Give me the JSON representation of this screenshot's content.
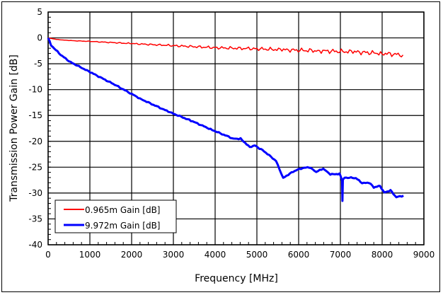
{
  "chart_data": {
    "type": "line",
    "title": "",
    "xlabel": "Frequency [MHz]",
    "ylabel": "Transmission Power Gain  [dB]",
    "xlim": [
      0,
      9000
    ],
    "ylim": [
      -40,
      5
    ],
    "xticks": [
      0,
      1000,
      2000,
      3000,
      4000,
      5000,
      6000,
      7000,
      8000,
      9000
    ],
    "yticks": [
      5,
      0,
      -5,
      -10,
      -15,
      -20,
      -25,
      -30,
      -35,
      -40
    ],
    "grid": true,
    "legend_position": "bottom-left",
    "series": [
      {
        "name": "0.965m Gain [dB]",
        "color": "#ff0000",
        "x": [
          0,
          200,
          500,
          1050,
          2000,
          3000,
          4000,
          5000,
          5600,
          6500,
          7300,
          8000,
          8500
        ],
        "y": [
          0,
          -0.3,
          -0.5,
          -0.7,
          -1.1,
          -1.5,
          -1.9,
          -2.1,
          -2.3,
          -2.5,
          -2.7,
          -3.0,
          -3.3
        ]
      },
      {
        "name": "9.972m Gain [dB]",
        "color": "#0000ff",
        "x": [
          0,
          70,
          300,
          540,
          1050,
          1560,
          2240,
          2920,
          3420,
          3930,
          4440,
          4610,
          4830,
          4950,
          5170,
          5460,
          5630,
          5830,
          6020,
          6250,
          6420,
          6590,
          6760,
          6980,
          7040,
          7050,
          7060,
          7100,
          7370,
          7520,
          7690,
          7800,
          7950,
          8050,
          8200,
          8340,
          8510
        ],
        "y": [
          0,
          -1.4,
          -3.3,
          -4.7,
          -6.8,
          -8.9,
          -11.9,
          -14.4,
          -16,
          -17.8,
          -19.5,
          -19.5,
          -21.1,
          -20.8,
          -21.9,
          -23.8,
          -27.1,
          -26.0,
          -25.3,
          -25.0,
          -25.9,
          -25.3,
          -26.4,
          -26.3,
          -27.5,
          -31.5,
          -27.5,
          -27.0,
          -27.1,
          -28.1,
          -28.0,
          -28.9,
          -28.6,
          -29.9,
          -29.5,
          -30.8,
          -30.5
        ]
      }
    ]
  }
}
